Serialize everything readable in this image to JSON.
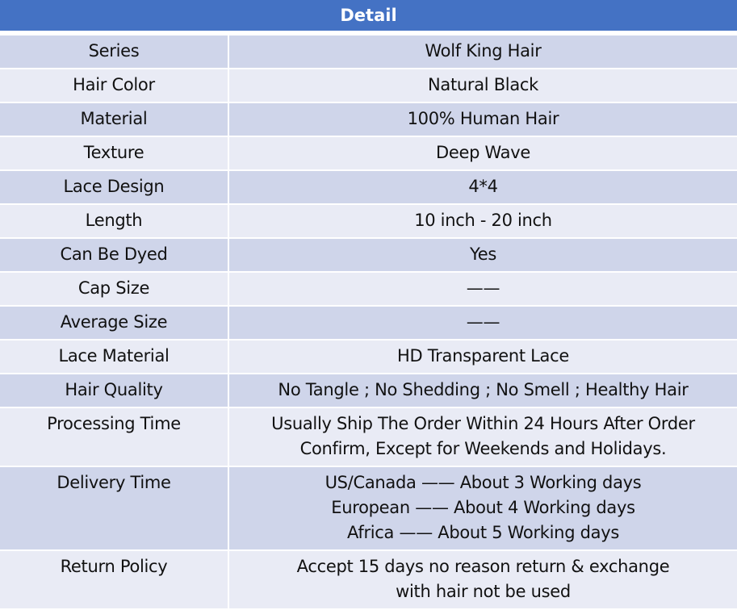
{
  "title": "Detail",
  "colors": {
    "header": "#4472C4",
    "row_odd": "#CFD5EA",
    "row_even": "#E9EBF5"
  },
  "rows": [
    {
      "label": "Series",
      "value": [
        "Wolf King Hair"
      ]
    },
    {
      "label": "Hair Color",
      "value": [
        "Natural Black"
      ]
    },
    {
      "label": "Material",
      "value": [
        "100% Human Hair"
      ]
    },
    {
      "label": "Texture",
      "value": [
        "Deep Wave"
      ]
    },
    {
      "label": "Lace Design",
      "value": [
        "4*4"
      ]
    },
    {
      "label": "Length",
      "value": [
        "10 inch - 20 inch"
      ]
    },
    {
      "label": "Can Be Dyed",
      "value": [
        "Yes"
      ]
    },
    {
      "label": "Cap Size",
      "value": [
        "——"
      ]
    },
    {
      "label": "Average Size",
      "value": [
        "——"
      ]
    },
    {
      "label": "Lace Material",
      "value": [
        "HD Transparent Lace"
      ]
    },
    {
      "label": "Hair Quality",
      "value": [
        "No Tangle ; No Shedding ; No Smell ; Healthy Hair"
      ]
    },
    {
      "label": "Processing Time",
      "value": [
        "Usually Ship The Order Within 24 Hours After Order",
        "Confirm, Except for Weekends and Holidays."
      ]
    },
    {
      "label": "Delivery Time",
      "value": [
        "US/Canada —— About 3 Working days",
        "European —— About 4 Working days",
        "Africa —— About 5 Working days"
      ]
    },
    {
      "label": "Return Policy",
      "value": [
        "Accept 15 days no reason return & exchange",
        "with hair not be used"
      ]
    }
  ]
}
